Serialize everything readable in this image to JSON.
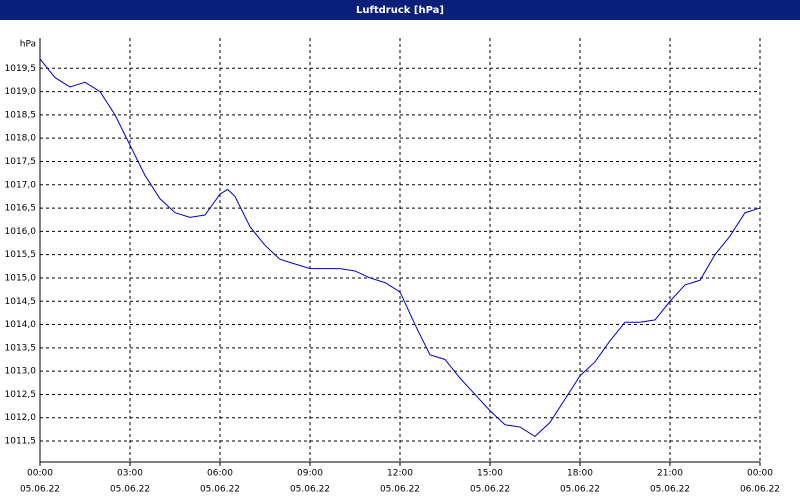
{
  "chart_data": {
    "type": "line",
    "title": "Luftdruck [hPa]",
    "y_label": "hPa",
    "x": [
      0,
      0.5,
      1,
      1.5,
      2,
      2.5,
      3,
      3.5,
      4,
      4.5,
      5,
      5.5,
      6,
      6.25,
      6.5,
      7,
      7.5,
      8,
      8.5,
      9,
      9.5,
      10,
      10.5,
      11,
      11.5,
      12,
      12.5,
      13,
      13.5,
      14,
      14.5,
      15,
      15.5,
      16,
      16.5,
      17,
      17.5,
      18,
      18.5,
      19,
      19.5,
      20,
      20.5,
      21,
      21.5,
      22,
      22.5,
      23,
      23.5,
      24
    ],
    "series": [
      {
        "name": "Luftdruck",
        "color": "#0000cc",
        "values": [
          1019.7,
          1019.3,
          1019.1,
          1019.2,
          1019.0,
          1018.5,
          1017.85,
          1017.2,
          1016.7,
          1016.4,
          1016.3,
          1016.35,
          1016.8,
          1016.9,
          1016.75,
          1016.1,
          1015.7,
          1015.4,
          1015.3,
          1015.2,
          1015.2,
          1015.2,
          1015.15,
          1015.0,
          1014.9,
          1014.7,
          1014.0,
          1013.35,
          1013.25,
          1012.85,
          1012.5,
          1012.15,
          1011.85,
          1011.8,
          1011.6,
          1011.9,
          1012.4,
          1012.9,
          1013.2,
          1013.65,
          1014.05,
          1014.05,
          1014.1,
          1014.5,
          1014.85,
          1014.95,
          1015.5,
          1015.9,
          1016.4,
          1016.5
        ]
      }
    ],
    "xlim": [
      0,
      24
    ],
    "xticks": [
      {
        "value": 0,
        "label": [
          "00:00",
          "05.06.22"
        ]
      },
      {
        "value": 3,
        "label": [
          "03:00",
          "05.06.22"
        ]
      },
      {
        "value": 6,
        "label": [
          "06:00",
          "05.06.22"
        ]
      },
      {
        "value": 9,
        "label": [
          "09:00",
          "05.06.22"
        ]
      },
      {
        "value": 12,
        "label": [
          "12:00",
          "05.06.22"
        ]
      },
      {
        "value": 15,
        "label": [
          "15:00",
          "05.06.22"
        ]
      },
      {
        "value": 18,
        "label": [
          "18:00",
          "05.06.22"
        ]
      },
      {
        "value": 21,
        "label": [
          "21:00",
          "05.06.22"
        ]
      },
      {
        "value": 24,
        "label": [
          "00:00",
          "06.06.22"
        ]
      }
    ],
    "ylim": [
      1011.05,
      1020.15
    ],
    "yticks": [
      {
        "value": 1011.5,
        "label": "1011,5"
      },
      {
        "value": 1012,
        "label": "1012,0"
      },
      {
        "value": 1012.5,
        "label": "1012,5"
      },
      {
        "value": 1013,
        "label": "1013,0"
      },
      {
        "value": 1013.5,
        "label": "1013,5"
      },
      {
        "value": 1014,
        "label": "1014,0"
      },
      {
        "value": 1014.5,
        "label": "1014,5"
      },
      {
        "value": 1015,
        "label": "1015,0"
      },
      {
        "value": 1015.5,
        "label": "1015,5"
      },
      {
        "value": 1016,
        "label": "1016,0"
      },
      {
        "value": 1016.5,
        "label": "1016,5"
      },
      {
        "value": 1017,
        "label": "1017,0"
      },
      {
        "value": 1017.5,
        "label": "1017,5"
      },
      {
        "value": 1018,
        "label": "1018,0"
      },
      {
        "value": 1018.5,
        "label": "1018,5"
      },
      {
        "value": 1019,
        "label": "1019,0"
      },
      {
        "value": 1019.5,
        "label": "1019,5"
      }
    ],
    "grid": true
  }
}
